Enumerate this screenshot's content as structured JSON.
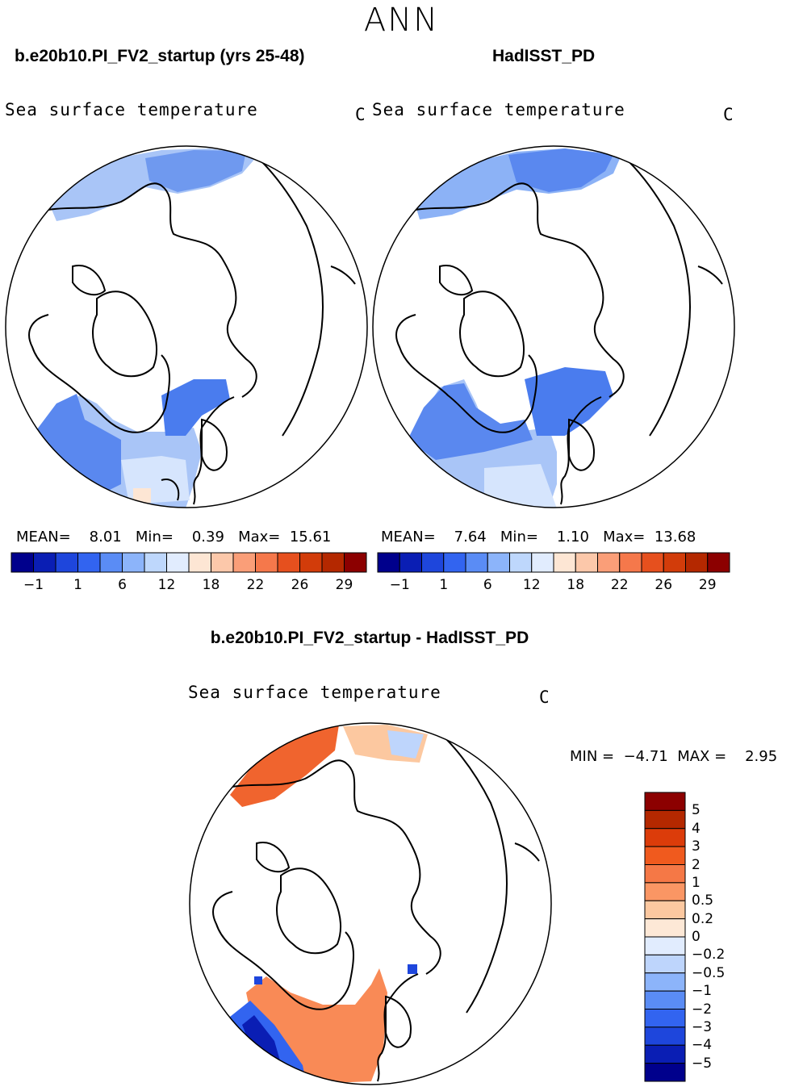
{
  "title": "ANN",
  "panels": [
    {
      "case": "b.e20b10.PI_FV2_startup (yrs 25-48)",
      "variable": "Sea surface temperature",
      "units": "C",
      "stats": {
        "mean_label": "MEAN=",
        "mean": "8.01",
        "min_label": "Min=",
        "min": "0.39",
        "max_label": "Max=",
        "max": "15.61"
      }
    },
    {
      "case": "HadISST_PD",
      "variable": "Sea surface temperature",
      "units": "C",
      "stats": {
        "mean_label": "MEAN=",
        "mean": "7.64",
        "min_label": "Min=",
        "min": "1.10",
        "max_label": "Max=",
        "max": "13.68"
      }
    }
  ],
  "colorbar": {
    "colors": [
      "#00008c",
      "#0a1eb4",
      "#1e46dc",
      "#3264f0",
      "#5a8cf5",
      "#8cb4fa",
      "#bed7fc",
      "#e1ecfe",
      "#fde6d4",
      "#fcc8aa",
      "#fa9e78",
      "#f5784b",
      "#e6501e",
      "#d23c0a",
      "#b42800",
      "#8c0000"
    ],
    "tick_labels": [
      "−1",
      "1",
      "6",
      "12",
      "18",
      "22",
      "26",
      "29"
    ]
  },
  "diff": {
    "case": "b.e20b10.PI_FV2_startup - HadISST_PD",
    "variable": "Sea surface temperature",
    "units": "C",
    "stats": {
      "min_label": "MIN =",
      "min": "−4.71",
      "max_label": "MAX =",
      "max": "2.95"
    },
    "colors": [
      "#8c0000",
      "#b42800",
      "#dc3c0a",
      "#f05a1e",
      "#f57846",
      "#fa9664",
      "#fcc8a0",
      "#fde8d6",
      "#e1ecfe",
      "#bed5fc",
      "#8cb4fa",
      "#5a8cf5",
      "#3264f0",
      "#1e46dc",
      "#0a1eb4",
      "#00008c"
    ],
    "labels": [
      "5",
      "4",
      "3",
      "2",
      "1",
      "0.5",
      "0.2",
      "0",
      "−0.2",
      "−0.5",
      "−1",
      "−2",
      "−3",
      "−4",
      "−5"
    ]
  }
}
